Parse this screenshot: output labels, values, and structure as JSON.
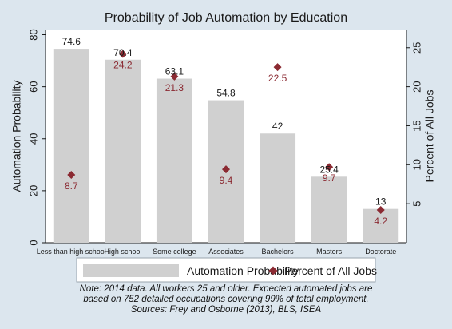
{
  "chart_data": {
    "type": "bar",
    "title": "Probability of Job Automation by Education",
    "categories": [
      "Less than high school",
      "High school",
      "Some college",
      "Associates",
      "Bachelors",
      "Masters",
      "Doctorate"
    ],
    "series": [
      {
        "name": "Automation Probability",
        "kind": "bar",
        "axis": "left",
        "color": "#d0d0d0",
        "values": [
          74.6,
          70.4,
          63.1,
          54.8,
          42,
          25.4,
          13
        ]
      },
      {
        "name": "Percent of All Jobs",
        "kind": "scatter",
        "axis": "right",
        "color": "#8b2a32",
        "values": [
          8.7,
          24.2,
          21.3,
          9.4,
          22.5,
          9.7,
          4.2
        ]
      }
    ],
    "ylabel": "Automation Probability",
    "y2label": "Percent of All Jobs",
    "ylim": [
      0,
      82
    ],
    "y2lim": [
      0,
      27.33
    ],
    "yticks": [
      0,
      20,
      40,
      60,
      80
    ],
    "y2ticks": [
      5,
      10,
      15,
      20,
      25
    ],
    "bar_labels": [
      "74.6",
      "70.4",
      "63.1",
      "54.8",
      "42",
      "25.4",
      "13"
    ],
    "point_labels": [
      "8.7",
      "24.2",
      "21.3",
      "9.4",
      "22.5",
      "9.7",
      "4.2"
    ],
    "legend": {
      "placement": "bottom",
      "items": [
        "Automation Probability",
        "Percent of All Jobs"
      ]
    },
    "grid": false
  },
  "notes": [
    "Note: 2014 data. All workers 25 and older. Expected automated jobs are",
    "based on 752 detailed occupations covering 99% of total employment.",
    "Sources: Frey and Osborne (2013), BLS, ISEA"
  ]
}
